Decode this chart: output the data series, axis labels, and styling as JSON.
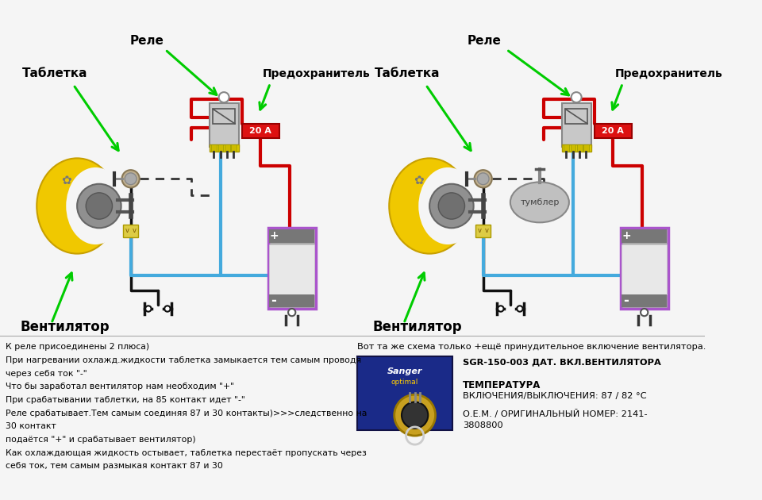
{
  "bg_color": "#f5f5f5",
  "left_diagram": {
    "tablet_label": "Таблетка",
    "relay_label": "Реле",
    "fuse_label": "Предохранитель",
    "fuse_value": "20 А",
    "fan_label": "Вентилятор"
  },
  "right_diagram": {
    "tablet_label": "Таблетка",
    "relay_label": "Реле",
    "fuse_label": "Предохранитель",
    "fuse_value": "20 А",
    "fan_label": "Вентилятор",
    "tumbler_label": "тумблер"
  },
  "bottom_left_text": [
    "К реле присоединены 2 плюса)",
    "При нагревании охлажд.жидкости таблетка замыкается тем самым проводя",
    "через себя ток \"-\"",
    "Что бы заработал вентилятор нам необходим \"+\"",
    "При срабатывании таблетки, на 85 контакт идет \"-\"",
    "Реле срабатывает.Тем самым соединяя 87 и 30 контакты)>>>следственно на",
    "30 контакт",
    "подаётся \"+\" и срабатывает вентилятор)",
    "Как охлаждающая жидкость остывает, таблетка перестаёт пропускать через",
    "себя ток, тем самым размыкая контакт 87 и 30"
  ],
  "bottom_right_line1": "Вот та же схема только +ещё принудительное включение вентилятора.",
  "bottom_right_line2": "SGR-150-003 ДАТ. ВКЛ.ВЕНТИЛЯТОРА",
  "bottom_right_line3": "ТЕМПЕРАТУРА",
  "bottom_right_line4": "ВКЛЮЧЕНИЯ/ВЫКЛЮЧЕНИЯ: 87 / 82 °С",
  "bottom_right_line5": "О.Е.М. / ОРИГИНАЛЬНЫЙ НОМЕР: 2141-",
  "bottom_right_line6": "3808800",
  "colors": {
    "red_wire": "#cc0000",
    "blue_wire": "#44aadd",
    "black_wire": "#111111",
    "dashed_wire": "#333333",
    "green_arrow": "#00cc00",
    "fan_yellow": "#f0c800",
    "fan_edge": "#c8a000",
    "relay_body": "#d0d0d0",
    "relay_pins": "#ccaa00",
    "fuse_red": "#dd1111",
    "battery_purple": "#aa55cc",
    "battery_body": "#888888",
    "battery_white": "#e8e8e8",
    "sensor_gold": "#c8a020",
    "sensor_blue": "#1a2a88",
    "tumbler_fill": "#bbbbbb",
    "white": "#ffffff",
    "tablet_metal": "#c0b090"
  }
}
